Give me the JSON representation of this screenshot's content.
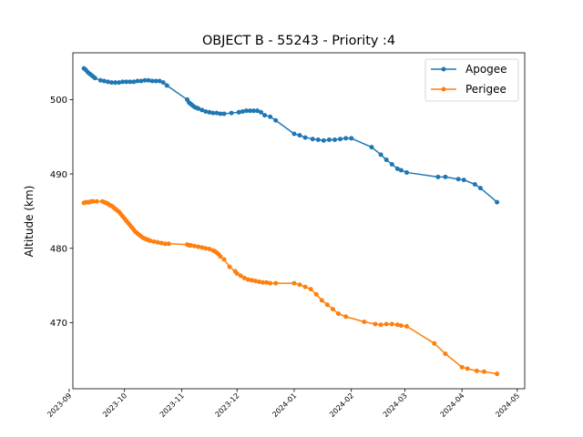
{
  "chart_data": {
    "type": "line",
    "title": "OBJECT B - 55243 - Priority :4",
    "xlabel": "",
    "ylabel": "Altitude (km)",
    "xlim": [
      "2023-09-03",
      "2024-05-05"
    ],
    "ylim": [
      461.1,
      506.3
    ],
    "x_ticks": [
      "2023-09",
      "2023-10",
      "2023-11",
      "2023-12",
      "2024-01",
      "2024-02",
      "2024-03",
      "2024-04",
      "2024-05"
    ],
    "y_ticks": [
      470,
      480,
      490,
      500
    ],
    "grid": false,
    "legend_position": "top-right",
    "series": [
      {
        "name": "Apogee",
        "color": "#1f77b4",
        "points": [
          [
            "2023-09-09",
            504.2
          ],
          [
            "2023-09-10",
            504.0
          ],
          [
            "2023-09-11",
            503.7
          ],
          [
            "2023-09-12",
            503.5
          ],
          [
            "2023-09-13",
            503.3
          ],
          [
            "2023-09-14",
            503.1
          ],
          [
            "2023-09-15",
            502.9
          ],
          [
            "2023-09-18",
            502.6
          ],
          [
            "2023-09-20",
            502.5
          ],
          [
            "2023-09-22",
            502.4
          ],
          [
            "2023-09-24",
            502.3
          ],
          [
            "2023-09-26",
            502.3
          ],
          [
            "2023-09-28",
            502.3
          ],
          [
            "2023-09-30",
            502.4
          ],
          [
            "2023-10-02",
            502.4
          ],
          [
            "2023-10-04",
            502.4
          ],
          [
            "2023-10-06",
            502.4
          ],
          [
            "2023-10-08",
            502.5
          ],
          [
            "2023-10-10",
            502.5
          ],
          [
            "2023-10-12",
            502.6
          ],
          [
            "2023-10-14",
            502.6
          ],
          [
            "2023-10-16",
            502.5
          ],
          [
            "2023-10-18",
            502.5
          ],
          [
            "2023-10-20",
            502.5
          ],
          [
            "2023-10-22",
            502.3
          ],
          [
            "2023-10-24",
            501.9
          ],
          [
            "2023-11-04",
            500.0
          ],
          [
            "2023-11-05",
            499.6
          ],
          [
            "2023-11-06",
            499.4
          ],
          [
            "2023-11-07",
            499.2
          ],
          [
            "2023-11-08",
            499.0
          ],
          [
            "2023-11-09",
            498.9
          ],
          [
            "2023-11-10",
            498.8
          ],
          [
            "2023-11-12",
            498.6
          ],
          [
            "2023-11-14",
            498.4
          ],
          [
            "2023-11-16",
            498.3
          ],
          [
            "2023-11-18",
            498.2
          ],
          [
            "2023-11-20",
            498.2
          ],
          [
            "2023-11-22",
            498.1
          ],
          [
            "2023-11-24",
            498.1
          ],
          [
            "2023-11-28",
            498.2
          ],
          [
            "2023-12-02",
            498.3
          ],
          [
            "2023-12-04",
            498.4
          ],
          [
            "2023-12-06",
            498.5
          ],
          [
            "2023-12-08",
            498.5
          ],
          [
            "2023-12-10",
            498.5
          ],
          [
            "2023-12-12",
            498.5
          ],
          [
            "2023-12-14",
            498.3
          ],
          [
            "2023-12-16",
            497.9
          ],
          [
            "2023-12-19",
            497.7
          ],
          [
            "2023-12-22",
            497.2
          ],
          [
            "2024-01-01",
            495.4
          ],
          [
            "2024-01-04",
            495.2
          ],
          [
            "2024-01-07",
            494.9
          ],
          [
            "2024-01-11",
            494.7
          ],
          [
            "2024-01-14",
            494.6
          ],
          [
            "2024-01-17",
            494.5
          ],
          [
            "2024-01-20",
            494.6
          ],
          [
            "2024-01-23",
            494.6
          ],
          [
            "2024-01-26",
            494.7
          ],
          [
            "2024-01-29",
            494.8
          ],
          [
            "2024-02-01",
            494.8
          ],
          [
            "2024-02-12",
            493.6
          ],
          [
            "2024-02-17",
            492.6
          ],
          [
            "2024-02-20",
            491.9
          ],
          [
            "2024-02-23",
            491.3
          ],
          [
            "2024-02-26",
            490.7
          ],
          [
            "2024-02-28",
            490.5
          ],
          [
            "2024-03-02",
            490.2
          ],
          [
            "2024-03-19",
            489.6
          ],
          [
            "2024-03-23",
            489.6
          ],
          [
            "2024-03-30",
            489.3
          ],
          [
            "2024-04-02",
            489.2
          ],
          [
            "2024-04-08",
            488.6
          ],
          [
            "2024-04-11",
            488.1
          ],
          [
            "2024-04-20",
            486.2
          ]
        ]
      },
      {
        "name": "Perigee",
        "color": "#ff7f0e",
        "points": [
          [
            "2023-09-09",
            486.1
          ],
          [
            "2023-09-10",
            486.2
          ],
          [
            "2023-09-11",
            486.2
          ],
          [
            "2023-09-12",
            486.2
          ],
          [
            "2023-09-13",
            486.3
          ],
          [
            "2023-09-14",
            486.3
          ],
          [
            "2023-09-16",
            486.3
          ],
          [
            "2023-09-19",
            486.3
          ],
          [
            "2023-09-20",
            486.2
          ],
          [
            "2023-09-21",
            486.1
          ],
          [
            "2023-09-22",
            486.0
          ],
          [
            "2023-09-23",
            485.8
          ],
          [
            "2023-09-24",
            485.7
          ],
          [
            "2023-09-25",
            485.5
          ],
          [
            "2023-09-26",
            485.3
          ],
          [
            "2023-09-27",
            485.1
          ],
          [
            "2023-09-28",
            484.9
          ],
          [
            "2023-09-29",
            484.6
          ],
          [
            "2023-09-30",
            484.3
          ],
          [
            "2023-10-01",
            484.0
          ],
          [
            "2023-10-02",
            483.7
          ],
          [
            "2023-10-03",
            483.4
          ],
          [
            "2023-10-04",
            483.1
          ],
          [
            "2023-10-05",
            482.8
          ],
          [
            "2023-10-06",
            482.5
          ],
          [
            "2023-10-07",
            482.2
          ],
          [
            "2023-10-08",
            482.0
          ],
          [
            "2023-10-09",
            481.8
          ],
          [
            "2023-10-10",
            481.6
          ],
          [
            "2023-10-11",
            481.4
          ],
          [
            "2023-10-12",
            481.3
          ],
          [
            "2023-10-13",
            481.2
          ],
          [
            "2023-10-14",
            481.1
          ],
          [
            "2023-10-15",
            481.0
          ],
          [
            "2023-10-17",
            480.9
          ],
          [
            "2023-10-19",
            480.8
          ],
          [
            "2023-10-21",
            480.7
          ],
          [
            "2023-10-23",
            480.6
          ],
          [
            "2023-10-25",
            480.6
          ],
          [
            "2023-11-04",
            480.5
          ],
          [
            "2023-11-05",
            480.4
          ],
          [
            "2023-11-06",
            480.4
          ],
          [
            "2023-11-08",
            480.3
          ],
          [
            "2023-11-10",
            480.2
          ],
          [
            "2023-11-12",
            480.1
          ],
          [
            "2023-11-14",
            480.0
          ],
          [
            "2023-11-16",
            479.9
          ],
          [
            "2023-11-18",
            479.7
          ],
          [
            "2023-11-19",
            479.6
          ],
          [
            "2023-11-20",
            479.4
          ],
          [
            "2023-11-21",
            479.2
          ],
          [
            "2023-11-22",
            478.9
          ],
          [
            "2023-11-24",
            478.5
          ],
          [
            "2023-11-27",
            477.5
          ],
          [
            "2023-11-30",
            476.9
          ],
          [
            "2023-12-01",
            476.6
          ],
          [
            "2023-12-03",
            476.3
          ],
          [
            "2023-12-05",
            476.0
          ],
          [
            "2023-12-07",
            475.8
          ],
          [
            "2023-12-09",
            475.7
          ],
          [
            "2023-12-11",
            475.6
          ],
          [
            "2023-12-13",
            475.5
          ],
          [
            "2023-12-15",
            475.4
          ],
          [
            "2023-12-17",
            475.4
          ],
          [
            "2023-12-19",
            475.3
          ],
          [
            "2023-12-22",
            475.3
          ],
          [
            "2024-01-01",
            475.3
          ],
          [
            "2024-01-04",
            475.1
          ],
          [
            "2024-01-07",
            474.8
          ],
          [
            "2024-01-10",
            474.5
          ],
          [
            "2024-01-13",
            473.8
          ],
          [
            "2024-01-16",
            473.0
          ],
          [
            "2024-01-19",
            472.4
          ],
          [
            "2024-01-22",
            471.8
          ],
          [
            "2024-01-25",
            471.2
          ],
          [
            "2024-01-29",
            470.8
          ],
          [
            "2024-02-08",
            470.1
          ],
          [
            "2024-02-14",
            469.8
          ],
          [
            "2024-02-17",
            469.7
          ],
          [
            "2024-02-20",
            469.8
          ],
          [
            "2024-02-23",
            469.8
          ],
          [
            "2024-02-26",
            469.7
          ],
          [
            "2024-02-28",
            469.6
          ],
          [
            "2024-03-02",
            469.5
          ],
          [
            "2024-03-17",
            467.2
          ],
          [
            "2024-03-23",
            465.8
          ],
          [
            "2024-04-01",
            464.0
          ],
          [
            "2024-04-04",
            463.8
          ],
          [
            "2024-04-09",
            463.5
          ],
          [
            "2024-04-13",
            463.4
          ],
          [
            "2024-04-20",
            463.1
          ]
        ]
      }
    ]
  }
}
